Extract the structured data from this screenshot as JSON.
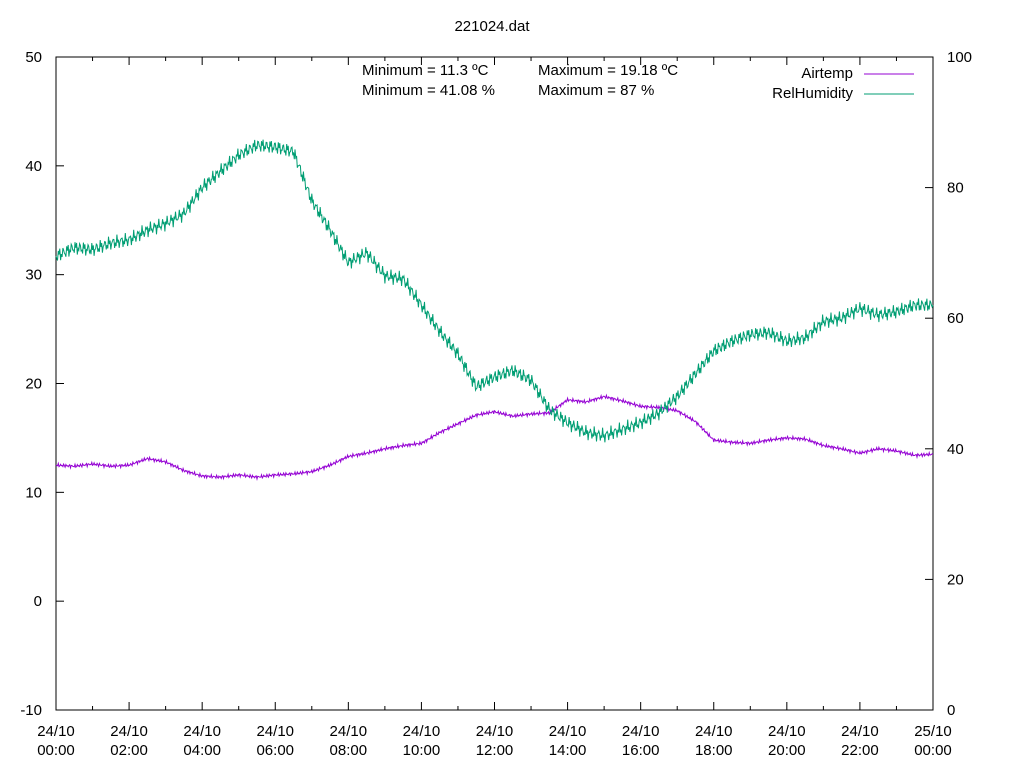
{
  "chart_data": {
    "type": "line",
    "title": "221024.dat",
    "x_ticks": [
      "24/10\n00:00",
      "24/10\n02:00",
      "24/10\n04:00",
      "24/10\n06:00",
      "24/10\n08:00",
      "24/10\n10:00",
      "24/10\n12:00",
      "24/10\n14:00",
      "24/10\n16:00",
      "24/10\n18:00",
      "24/10\n20:00",
      "24/10\n22:00",
      "25/10\n00:00"
    ],
    "x_range_hours": [
      0,
      24
    ],
    "y_left": {
      "range": [
        -10,
        50
      ],
      "ticks": [
        "-10",
        "0",
        "10",
        "20",
        "30",
        "40",
        "50"
      ]
    },
    "y_right": {
      "range": [
        0,
        100
      ],
      "ticks": [
        "0",
        "20",
        "40",
        "60",
        "80",
        "100"
      ]
    },
    "legend_position": "top-right",
    "stats": [
      {
        "min_label": "Minimum = 11.3 ºC",
        "max_label": "Maximum = 19.18 ºC"
      },
      {
        "min_label": "Minimum = 41.08 %",
        "max_label": "Maximum = 87 %"
      }
    ],
    "series": [
      {
        "name": "Airtemp",
        "axis": "left",
        "color": "#9400d3",
        "x": [
          0,
          0.5,
          1,
          1.5,
          2,
          2.5,
          3,
          3.5,
          4,
          4.5,
          5,
          5.5,
          6,
          6.5,
          7,
          7.5,
          8,
          8.5,
          9,
          9.5,
          10,
          10.5,
          11,
          11.5,
          12,
          12.5,
          13,
          13.5,
          14,
          14.5,
          15,
          15.5,
          16,
          16.5,
          17,
          17.5,
          18,
          18.5,
          19,
          19.5,
          20,
          20.5,
          21,
          21.5,
          22,
          22.5,
          23,
          23.5,
          24
        ],
        "y": [
          12.5,
          12.4,
          12.6,
          12.4,
          12.5,
          13.1,
          12.8,
          12.0,
          11.5,
          11.4,
          11.6,
          11.4,
          11.6,
          11.7,
          11.9,
          12.5,
          13.3,
          13.6,
          14.0,
          14.3,
          14.5,
          15.5,
          16.3,
          17.1,
          17.4,
          17.0,
          17.2,
          17.3,
          18.5,
          18.3,
          18.8,
          18.4,
          17.9,
          17.8,
          17.5,
          16.5,
          14.8,
          14.6,
          14.5,
          14.8,
          15.0,
          14.9,
          14.3,
          14.0,
          13.6,
          14.0,
          13.8,
          13.4,
          13.5
        ]
      },
      {
        "name": "RelHumidity",
        "axis": "right",
        "color": "#009e73",
        "x": [
          0,
          0.5,
          1,
          1.5,
          2,
          2.5,
          3,
          3.5,
          4,
          4.5,
          5,
          5.5,
          6,
          6.5,
          7,
          7.5,
          8,
          8.5,
          9,
          9.5,
          10,
          10.5,
          11,
          11.5,
          12,
          12.5,
          13,
          13.5,
          14,
          14.5,
          15,
          15.5,
          16,
          16.5,
          17,
          17.5,
          18,
          18.5,
          19,
          19.5,
          20,
          20.5,
          21,
          21.5,
          22,
          22.5,
          23,
          23.5,
          24
        ],
        "y": [
          69.5,
          70.8,
          70.5,
          71.5,
          72,
          73.5,
          74.5,
          76,
          80,
          82.5,
          85,
          86.5,
          86.2,
          85.5,
          78,
          73.5,
          68.5,
          70,
          66.5,
          66,
          62,
          58,
          54.5,
          49.5,
          51,
          52,
          50.5,
          46,
          44,
          42.5,
          42,
          43,
          44,
          45.5,
          48,
          51.5,
          55,
          56.5,
          57.5,
          57.8,
          56.5,
          57,
          59.5,
          60,
          61.5,
          60.5,
          61,
          62,
          62
        ]
      }
    ]
  }
}
